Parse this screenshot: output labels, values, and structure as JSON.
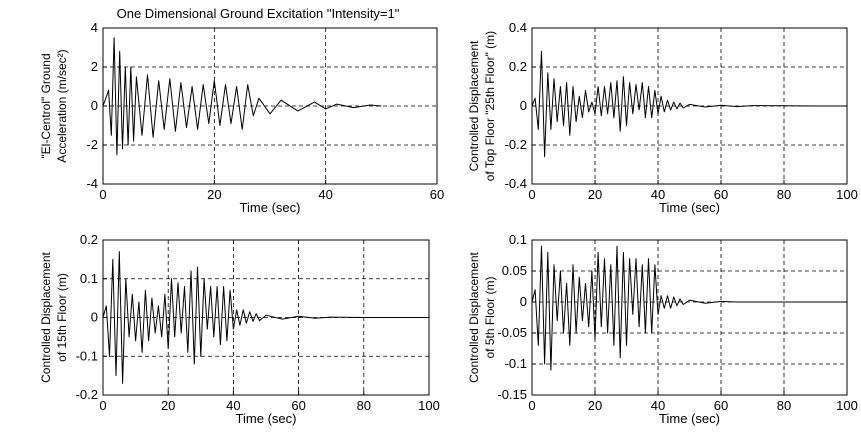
{
  "chart_data": [
    {
      "type": "line",
      "title": "One Dimensional Ground Excitation \"Intensity=1\"",
      "xlabel": "Time (sec)",
      "ylabel": [
        "\"El-Centrol\" Ground",
        "Acceleration (m/sec²)"
      ],
      "xlim": [
        0,
        60
      ],
      "ylim": [
        -4,
        4
      ],
      "xticks": [
        0,
        20,
        40,
        60
      ],
      "yticks": [
        -4,
        -2,
        0,
        2,
        4
      ],
      "xtick_labels": [
        "0",
        "20",
        "40",
        "60"
      ],
      "ytick_labels": [
        "-4",
        "-2",
        "0",
        "2",
        "4"
      ],
      "grid": true,
      "series": [
        {
          "x": [
            0,
            1,
            1.5,
            2,
            2.5,
            3,
            3.5,
            4,
            4.5,
            5,
            5.5,
            6,
            7,
            8,
            9,
            10,
            11,
            12,
            13,
            14,
            15,
            16,
            17,
            18,
            19,
            20,
            21,
            22,
            23,
            24,
            25,
            26,
            27,
            28,
            30,
            32,
            35,
            38,
            40,
            42,
            45,
            48,
            50
          ],
          "y": [
            0,
            0.8,
            -1.5,
            3.5,
            -2.5,
            2.8,
            -2.2,
            2.0,
            -2.0,
            2.0,
            -1.8,
            1.5,
            -1.5,
            1.6,
            -1.6,
            1.3,
            -1.2,
            1.4,
            -1.3,
            1.2,
            -1.1,
            1.0,
            -1.2,
            1.1,
            -0.9,
            1.3,
            -1.0,
            1.1,
            -0.9,
            1.0,
            -1.2,
            1.1,
            -0.5,
            0.4,
            -0.4,
            0.3,
            -0.25,
            0.2,
            -0.15,
            0.1,
            -0.08,
            0.05,
            0
          ]
        }
      ]
    },
    {
      "type": "line",
      "xlabel": "Time (sec)",
      "ylabel": [
        "Controlled Displacement",
        "of Top Floor \"25th Floor\" (m)"
      ],
      "xlim": [
        0,
        100
      ],
      "ylim": [
        -0.4,
        0.4
      ],
      "xticks": [
        0,
        20,
        40,
        60,
        80,
        100
      ],
      "yticks": [
        -0.4,
        -0.2,
        0,
        0.2,
        0.4
      ],
      "xtick_labels": [
        "0",
        "20",
        "40",
        "60",
        "80",
        "100"
      ],
      "ytick_labels": [
        "-0.4",
        "-0.2",
        "0",
        "0.2",
        "0.4"
      ],
      "grid": true,
      "series": [
        {
          "x": [
            0,
            1,
            2,
            3,
            4,
            5,
            6,
            7,
            8,
            9,
            10,
            11,
            12,
            13,
            14,
            15,
            16,
            17,
            18,
            19,
            20,
            21,
            22,
            23,
            24,
            25,
            26,
            27,
            28,
            29,
            30,
            31,
            32,
            33,
            34,
            35,
            36,
            37,
            38,
            39,
            40,
            41,
            42,
            43,
            44,
            45,
            46,
            47,
            48,
            50,
            55,
            60,
            65,
            70,
            80,
            90,
            100
          ],
          "y": [
            0,
            0.04,
            -0.12,
            0.28,
            -0.26,
            0.17,
            -0.12,
            0.14,
            -0.08,
            0.1,
            -0.1,
            0.12,
            -0.15,
            0.1,
            -0.08,
            0.05,
            -0.06,
            0.08,
            -0.03,
            0.02,
            -0.04,
            0.1,
            -0.05,
            0.1,
            -0.04,
            0.12,
            -0.06,
            0.13,
            -0.13,
            0.15,
            -0.1,
            0.12,
            -0.04,
            0.11,
            -0.02,
            0.12,
            -0.06,
            0.1,
            -0.06,
            0.08,
            -0.04,
            0.05,
            -0.03,
            0.03,
            -0.02,
            0.02,
            -0.015,
            0.015,
            -0.01,
            0.008,
            -0.005,
            0.004,
            -0.003,
            0.002,
            0.001,
            0,
            0
          ]
        }
      ]
    },
    {
      "type": "line",
      "xlabel": "Time (sec)",
      "ylabel": [
        "Controlled Displacement",
        "of 15th Floor (m)"
      ],
      "xlim": [
        0,
        100
      ],
      "ylim": [
        -0.2,
        0.2
      ],
      "xticks": [
        0,
        20,
        40,
        60,
        80,
        100
      ],
      "yticks": [
        -0.2,
        -0.1,
        0,
        0.1,
        0.2
      ],
      "xtick_labels": [
        "0",
        "20",
        "40",
        "60",
        "80",
        "100"
      ],
      "ytick_labels": [
        "-0.2",
        "-0.1",
        "0",
        "0.1",
        "0.2"
      ],
      "grid": true,
      "series": [
        {
          "x": [
            0,
            1,
            2,
            3,
            4,
            5,
            6,
            7,
            8,
            9,
            10,
            11,
            12,
            13,
            14,
            15,
            16,
            17,
            18,
            19,
            20,
            21,
            22,
            23,
            24,
            25,
            26,
            27,
            28,
            29,
            30,
            31,
            32,
            33,
            34,
            35,
            36,
            37,
            38,
            39,
            40,
            41,
            42,
            43,
            44,
            45,
            46,
            47,
            48,
            50,
            55,
            60,
            65,
            70,
            80,
            90,
            100
          ],
          "y": [
            0,
            0.03,
            -0.1,
            0.15,
            -0.15,
            0.17,
            -0.17,
            0.1,
            -0.05,
            0.06,
            -0.06,
            0.04,
            -0.09,
            0.07,
            -0.06,
            0.05,
            -0.04,
            0.03,
            -0.05,
            0.06,
            -0.08,
            0.1,
            -0.05,
            0.09,
            -0.04,
            0.08,
            -0.09,
            0.12,
            -0.12,
            0.13,
            -0.1,
            0.1,
            -0.03,
            0.08,
            -0.05,
            0.08,
            -0.07,
            0.08,
            -0.06,
            0.07,
            -0.03,
            0.02,
            -0.02,
            0.02,
            -0.015,
            0.015,
            -0.01,
            0.01,
            -0.008,
            0.006,
            -0.004,
            0.003,
            -0.002,
            0.001,
            0,
            0,
            0
          ]
        }
      ]
    },
    {
      "type": "line",
      "xlabel": "Time (sec)",
      "ylabel": [
        "Controlled Displacement",
        "of 5th Floor (m)"
      ],
      "xlim": [
        0,
        100
      ],
      "ylim": [
        -0.15,
        0.1
      ],
      "xticks": [
        0,
        20,
        40,
        60,
        80,
        100
      ],
      "yticks": [
        -0.15,
        -0.1,
        -0.05,
        0,
        0.05,
        0.1
      ],
      "xtick_labels": [
        "0",
        "20",
        "40",
        "60",
        "80",
        "100"
      ],
      "ytick_labels": [
        "-0.15",
        "-0.1",
        "-0.05",
        "0",
        "0.05",
        "0.1"
      ],
      "grid": true,
      "series": [
        {
          "x": [
            0,
            1,
            2,
            3,
            4,
            5,
            6,
            7,
            8,
            9,
            10,
            11,
            12,
            13,
            14,
            15,
            16,
            17,
            18,
            19,
            20,
            21,
            22,
            23,
            24,
            25,
            26,
            27,
            28,
            29,
            30,
            31,
            32,
            33,
            34,
            35,
            36,
            37,
            38,
            39,
            40,
            41,
            42,
            43,
            44,
            45,
            46,
            47,
            48,
            50,
            55,
            60,
            65,
            70,
            80,
            90,
            100
          ],
          "y": [
            0,
            0.02,
            -0.07,
            0.09,
            -0.1,
            0.08,
            -0.11,
            0.06,
            -0.03,
            0.05,
            -0.05,
            0.03,
            -0.07,
            0.06,
            -0.05,
            0.04,
            -0.03,
            0.03,
            -0.04,
            0.05,
            -0.06,
            0.08,
            -0.04,
            0.07,
            -0.05,
            0.06,
            -0.07,
            0.09,
            -0.09,
            0.08,
            -0.07,
            0.07,
            -0.02,
            0.07,
            -0.04,
            0.06,
            -0.05,
            0.07,
            -0.05,
            0.06,
            -0.02,
            0.01,
            -0.01,
            0.01,
            -0.01,
            0.008,
            -0.006,
            0.005,
            -0.004,
            0.003,
            -0.002,
            0.001,
            0,
            0,
            0,
            0,
            0
          ]
        }
      ]
    }
  ]
}
